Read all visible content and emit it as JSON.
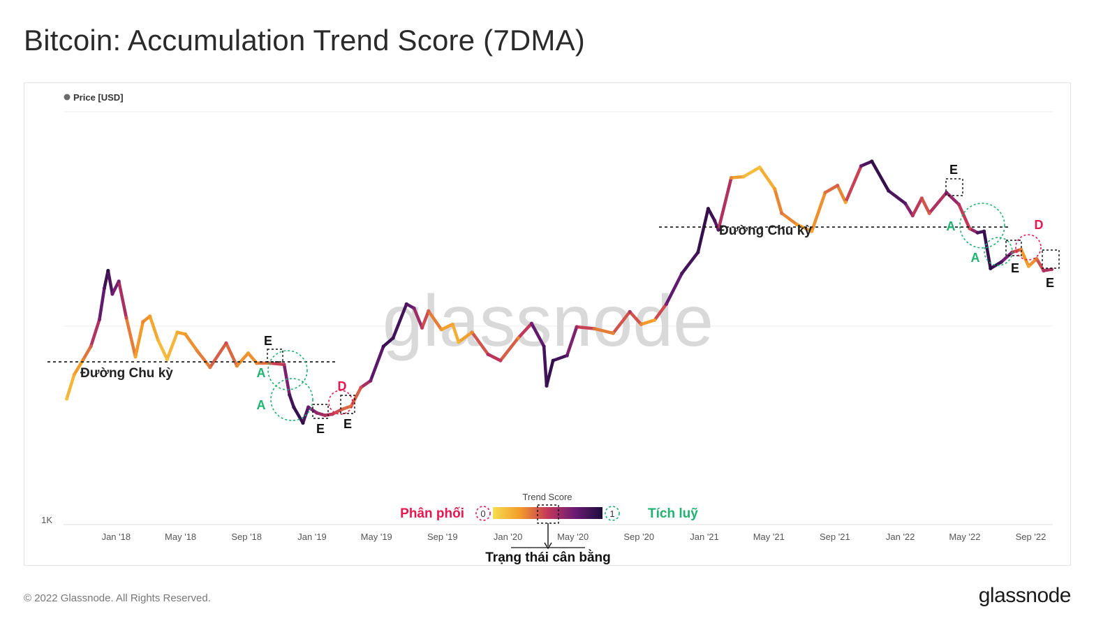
{
  "title": "Bitcoin: Accumulation Trend Score (7DMA)",
  "footer": "© 2022 Glassnode. All Rights Reserved.",
  "brand": "glassnode",
  "watermark": "glassnode",
  "colors": {
    "dist_label": "#e8174e",
    "accum_label": "#1fb270",
    "score_low": "#f7dd4d",
    "score_mid": "#c2385a",
    "score_high": "#1e0c3c"
  },
  "chart_data": {
    "type": "line",
    "series": [
      {
        "name": "Price [USD]"
      }
    ],
    "yaxis": {
      "scale": "log",
      "tick_labels": [
        "1K"
      ]
    },
    "x_tick_labels": [
      "Jan '18",
      "May '18",
      "Sep '18",
      "Jan '19",
      "May '19",
      "Sep '19",
      "Jan '20",
      "May '20",
      "Sep '20",
      "Jan '21",
      "May '21",
      "Sep '21",
      "Jan '22",
      "May '22",
      "Sep '22"
    ],
    "points": [
      {
        "date": "2017-10-01",
        "price": 4300,
        "score": 0.1
      },
      {
        "date": "2017-10-15",
        "price": 5700,
        "score": 0.2
      },
      {
        "date": "2017-11-01",
        "price": 6800,
        "score": 0.3
      },
      {
        "date": "2017-11-15",
        "price": 7900,
        "score": 0.4
      },
      {
        "date": "2017-12-01",
        "price": 10800,
        "score": 0.7
      },
      {
        "date": "2017-12-10",
        "price": 15500,
        "score": 0.85
      },
      {
        "date": "2017-12-17",
        "price": 19000,
        "score": 0.95
      },
      {
        "date": "2017-12-25",
        "price": 14500,
        "score": 0.75
      },
      {
        "date": "2018-01-06",
        "price": 16800,
        "score": 0.7
      },
      {
        "date": "2018-01-20",
        "price": 11000,
        "score": 0.45
      },
      {
        "date": "2018-02-06",
        "price": 7000,
        "score": 0.2
      },
      {
        "date": "2018-02-20",
        "price": 10500,
        "score": 0.3
      },
      {
        "date": "2018-03-05",
        "price": 11200,
        "score": 0.25
      },
      {
        "date": "2018-03-20",
        "price": 8500,
        "score": 0.15
      },
      {
        "date": "2018-04-06",
        "price": 6800,
        "score": 0.1
      },
      {
        "date": "2018-04-25",
        "price": 9300,
        "score": 0.2
      },
      {
        "date": "2018-05-10",
        "price": 9100,
        "score": 0.25
      },
      {
        "date": "2018-06-01",
        "price": 7500,
        "score": 0.3
      },
      {
        "date": "2018-06-25",
        "price": 6200,
        "score": 0.35
      },
      {
        "date": "2018-07-25",
        "price": 8200,
        "score": 0.45
      },
      {
        "date": "2018-08-14",
        "price": 6300,
        "score": 0.3
      },
      {
        "date": "2018-09-04",
        "price": 7300,
        "score": 0.25
      },
      {
        "date": "2018-09-20",
        "price": 6500,
        "score": 0.3
      },
      {
        "date": "2018-10-15",
        "price": 6500,
        "score": 0.4
      },
      {
        "date": "2018-11-10",
        "price": 6400,
        "score": 0.55
      },
      {
        "date": "2018-11-20",
        "price": 4500,
        "score": 0.85
      },
      {
        "date": "2018-11-28",
        "price": 3900,
        "score": 0.9
      },
      {
        "date": "2018-12-15",
        "price": 3250,
        "score": 0.95
      },
      {
        "date": "2018-12-25",
        "price": 3900,
        "score": 0.75
      },
      {
        "date": "2019-01-10",
        "price": 3650,
        "score": 0.65
      },
      {
        "date": "2019-01-25",
        "price": 3550,
        "score": 0.55
      },
      {
        "date": "2019-02-08",
        "price": 3600,
        "score": 0.5
      },
      {
        "date": "2019-02-25",
        "price": 3800,
        "score": 0.4
      },
      {
        "date": "2019-03-15",
        "price": 3950,
        "score": 0.35
      },
      {
        "date": "2019-04-02",
        "price": 4900,
        "score": 0.45
      },
      {
        "date": "2019-04-20",
        "price": 5300,
        "score": 0.7
      },
      {
        "date": "2019-05-14",
        "price": 7900,
        "score": 0.9
      },
      {
        "date": "2019-06-01",
        "price": 8700,
        "score": 0.9
      },
      {
        "date": "2019-06-26",
        "price": 12900,
        "score": 0.85
      },
      {
        "date": "2019-07-10",
        "price": 12300,
        "score": 0.7
      },
      {
        "date": "2019-07-25",
        "price": 9800,
        "score": 0.5
      },
      {
        "date": "2019-08-06",
        "price": 11900,
        "score": 0.4
      },
      {
        "date": "2019-08-30",
        "price": 9600,
        "score": 0.25
      },
      {
        "date": "2019-09-20",
        "price": 10200,
        "score": 0.2
      },
      {
        "date": "2019-10-01",
        "price": 8300,
        "score": 0.15
      },
      {
        "date": "2019-10-26",
        "price": 9300,
        "score": 0.3
      },
      {
        "date": "2019-11-25",
        "price": 7200,
        "score": 0.55
      },
      {
        "date": "2019-12-18",
        "price": 6700,
        "score": 0.5
      },
      {
        "date": "2020-01-20",
        "price": 8700,
        "score": 0.3
      },
      {
        "date": "2020-02-14",
        "price": 10300,
        "score": 0.7
      },
      {
        "date": "2020-03-08",
        "price": 7900,
        "score": 0.85
      },
      {
        "date": "2020-03-13",
        "price": 5000,
        "score": 0.9
      },
      {
        "date": "2020-03-25",
        "price": 6700,
        "score": 0.95
      },
      {
        "date": "2020-04-20",
        "price": 7100,
        "score": 0.8
      },
      {
        "date": "2020-05-08",
        "price": 9900,
        "score": 0.6
      },
      {
        "date": "2020-06-10",
        "price": 9700,
        "score": 0.35
      },
      {
        "date": "2020-07-15",
        "price": 9200,
        "score": 0.3
      },
      {
        "date": "2020-08-15",
        "price": 11800,
        "score": 0.55
      },
      {
        "date": "2020-09-05",
        "price": 10200,
        "score": 0.3
      },
      {
        "date": "2020-09-30",
        "price": 10700,
        "score": 0.2
      },
      {
        "date": "2020-10-22",
        "price": 12900,
        "score": 0.7
      },
      {
        "date": "2020-11-20",
        "price": 18400,
        "score": 0.85
      },
      {
        "date": "2020-12-20",
        "price": 23500,
        "score": 0.9
      },
      {
        "date": "2021-01-08",
        "price": 39000,
        "score": 0.95
      },
      {
        "date": "2021-01-20",
        "price": 34000,
        "score": 0.85
      },
      {
        "date": "2021-01-27",
        "price": 30500,
        "score": 0.8
      },
      {
        "date": "2021-02-20",
        "price": 55800,
        "score": 0.3
      },
      {
        "date": "2021-03-15",
        "price": 56500,
        "score": 0.15
      },
      {
        "date": "2021-04-14",
        "price": 63000,
        "score": 0.1
      },
      {
        "date": "2021-05-12",
        "price": 49000,
        "score": 0.25
      },
      {
        "date": "2021-05-25",
        "price": 37000,
        "score": 0.35
      },
      {
        "date": "2021-06-22",
        "price": 32500,
        "score": 0.25
      },
      {
        "date": "2021-07-20",
        "price": 30000,
        "score": 0.2
      },
      {
        "date": "2021-08-14",
        "price": 47000,
        "score": 0.35
      },
      {
        "date": "2021-09-06",
        "price": 51000,
        "score": 0.4
      },
      {
        "date": "2021-09-21",
        "price": 42000,
        "score": 0.2
      },
      {
        "date": "2021-10-20",
        "price": 64000,
        "score": 0.75
      },
      {
        "date": "2021-11-09",
        "price": 67500,
        "score": 0.95
      },
      {
        "date": "2021-12-10",
        "price": 48000,
        "score": 0.9
      },
      {
        "date": "2022-01-10",
        "price": 41500,
        "score": 0.8
      },
      {
        "date": "2022-01-24",
        "price": 36000,
        "score": 0.55
      },
      {
        "date": "2022-02-10",
        "price": 44000,
        "score": 0.45
      },
      {
        "date": "2022-02-24",
        "price": 37000,
        "score": 0.4
      },
      {
        "date": "2022-03-28",
        "price": 47000,
        "score": 0.7
      },
      {
        "date": "2022-04-20",
        "price": 41000,
        "score": 0.55
      },
      {
        "date": "2022-05-10",
        "price": 31000,
        "score": 0.45
      },
      {
        "date": "2022-05-25",
        "price": 29500,
        "score": 0.85
      },
      {
        "date": "2022-06-06",
        "price": 30000,
        "score": 0.9
      },
      {
        "date": "2022-06-18",
        "price": 19500,
        "score": 0.95
      },
      {
        "date": "2022-07-08",
        "price": 21000,
        "score": 0.85
      },
      {
        "date": "2022-07-28",
        "price": 23500,
        "score": 0.6
      },
      {
        "date": "2022-08-14",
        "price": 24300,
        "score": 0.3
      },
      {
        "date": "2022-08-28",
        "price": 20000,
        "score": 0.2
      },
      {
        "date": "2022-09-12",
        "price": 21800,
        "score": 0.35
      },
      {
        "date": "2022-09-25",
        "price": 19000,
        "score": 0.55
      },
      {
        "date": "2022-10-10",
        "price": 19300,
        "score": 0.55
      }
    ],
    "annotations": [
      {
        "label": "Đường Chu kỳ",
        "kind": "cycle-line",
        "price": 6600,
        "from": "2017-10-01",
        "to": "2019-04-30"
      },
      {
        "label": "Đường Chu kỳ",
        "kind": "cycle-line",
        "price": 31500,
        "from": "2020-12-01",
        "to": "2022-08-10"
      },
      {
        "label": "E",
        "kind": "box",
        "date": "2018-11-10",
        "price": 6500
      },
      {
        "label": "A",
        "kind": "circle",
        "date": "2018-11-20",
        "price": 5600
      },
      {
        "label": "A",
        "kind": "circle",
        "date": "2018-12-10",
        "price": 3900
      },
      {
        "label": "E",
        "kind": "box",
        "date": "2019-01-20",
        "price": 3600
      },
      {
        "label": "D",
        "kind": "circle",
        "date": "2019-03-10",
        "price": 3950
      },
      {
        "label": "E",
        "kind": "box",
        "date": "2019-04-01",
        "price": 3900
      },
      {
        "label": "E",
        "kind": "box",
        "date": "2022-04-01",
        "price": 44000
      },
      {
        "label": "A",
        "kind": "circle",
        "date": "2022-06-01",
        "price": 30000
      },
      {
        "label": "A",
        "kind": "circle",
        "date": "2022-06-25",
        "price": 20500
      },
      {
        "label": "E",
        "kind": "box",
        "date": "2022-07-25",
        "price": 23000
      },
      {
        "label": "D",
        "kind": "circle",
        "date": "2022-08-20",
        "price": 23000
      },
      {
        "label": "E",
        "kind": "box",
        "date": "2022-09-20",
        "price": 20000
      }
    ],
    "legend": {
      "title": "Trend Score",
      "min_label": "0",
      "max_label": "1",
      "left_label": "Phân phối",
      "right_label": "Tích luỹ",
      "balance_label": "Trạng thái cân bằng"
    }
  }
}
